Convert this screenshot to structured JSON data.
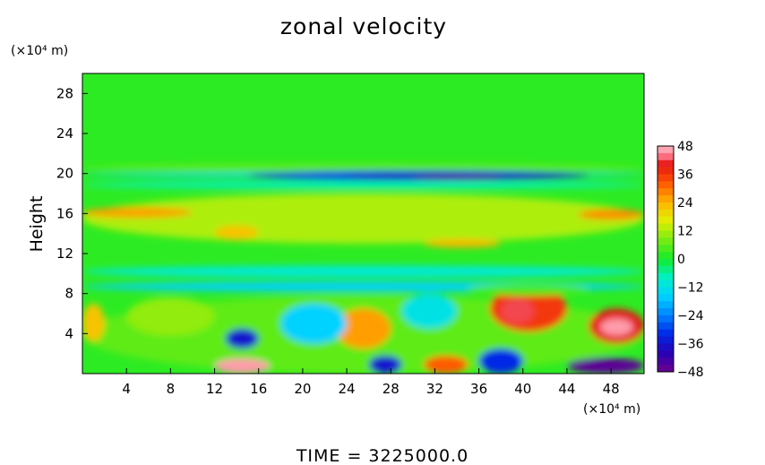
{
  "chart_data": {
    "type": "heatmap",
    "title": "zonal velocity",
    "ylabel": "Height",
    "x_unit": "(×10⁴ m)",
    "y_unit": "(×10⁴ m)",
    "xlim": [
      0,
      51
    ],
    "ylim": [
      0,
      30
    ],
    "x_ticks": [
      4,
      8,
      12,
      16,
      20,
      24,
      28,
      32,
      36,
      40,
      44,
      48
    ],
    "y_ticks": [
      4,
      8,
      12,
      16,
      20,
      24,
      28
    ],
    "colorbar": {
      "ticks": [
        48,
        36,
        24,
        12,
        0,
        -12,
        -24,
        -36,
        -48
      ],
      "range": [
        -48,
        48
      ]
    },
    "background_value": 2,
    "features": [
      {
        "x": [
          0,
          51
        ],
        "y": [
          20.2,
          21.0
        ],
        "value": 6
      },
      {
        "x": [
          0,
          51
        ],
        "y": [
          19.6,
          20.1
        ],
        "value": -14
      },
      {
        "x": [
          15,
          46
        ],
        "y": [
          19.3,
          20.3
        ],
        "value": -30
      },
      {
        "x": [
          24,
          44
        ],
        "y": [
          19.4,
          20.0
        ],
        "value": -38
      },
      {
        "x": [
          30,
          38
        ],
        "y": [
          19.5,
          19.9
        ],
        "value": -46
      },
      {
        "x": [
          0,
          51
        ],
        "y": [
          18.5,
          19.2
        ],
        "value": -8
      },
      {
        "x": [
          0,
          51
        ],
        "y": [
          13.0,
          18.0
        ],
        "value": 12
      },
      {
        "x": [
          0,
          10
        ],
        "y": [
          15.6,
          16.6
        ],
        "value": 26
      },
      {
        "x": [
          45,
          51
        ],
        "y": [
          15.4,
          16.4
        ],
        "value": 28
      },
      {
        "x": [
          12,
          16
        ],
        "y": [
          13.4,
          14.8
        ],
        "value": 22
      },
      {
        "x": [
          31,
          38
        ],
        "y": [
          12.6,
          13.4
        ],
        "value": 24
      },
      {
        "x": [
          0,
          51
        ],
        "y": [
          9.6,
          10.8
        ],
        "value": -10
      },
      {
        "x": [
          0,
          51
        ],
        "y": [
          8.2,
          9.2
        ],
        "value": -16
      },
      {
        "x": [
          0,
          51
        ],
        "y": [
          0,
          7.8
        ],
        "value": 6
      },
      {
        "x": [
          0,
          2
        ],
        "y": [
          3.2,
          7.0
        ],
        "value": 22
      },
      {
        "x": [
          4,
          12
        ],
        "y": [
          3.8,
          7.6
        ],
        "value": 10
      },
      {
        "x": [
          13,
          16
        ],
        "y": [
          2.5,
          4.5
        ],
        "value": -36
      },
      {
        "x": [
          12,
          17
        ],
        "y": [
          0,
          1.5
        ],
        "value": 46
      },
      {
        "x": [
          23,
          28
        ],
        "y": [
          2.5,
          6.5
        ],
        "value": 26
      },
      {
        "x": [
          18,
          24
        ],
        "y": [
          3.0,
          7.0
        ],
        "value": -16
      },
      {
        "x": [
          29,
          34
        ],
        "y": [
          4.5,
          8.0
        ],
        "value": -12
      },
      {
        "x": [
          31,
          35
        ],
        "y": [
          0,
          1.8
        ],
        "value": 32
      },
      {
        "x": [
          26,
          29
        ],
        "y": [
          0,
          1.8
        ],
        "value": -36
      },
      {
        "x": [
          37,
          44
        ],
        "y": [
          4.2,
          8.8
        ],
        "value": 36
      },
      {
        "x": [
          38,
          41
        ],
        "y": [
          5.0,
          7.5
        ],
        "value": 42
      },
      {
        "x": [
          36,
          40
        ],
        "y": [
          0,
          2.5
        ],
        "value": -32
      },
      {
        "x": [
          46,
          51
        ],
        "y": [
          3.0,
          6.5
        ],
        "value": 40
      },
      {
        "x": [
          47,
          50
        ],
        "y": [
          3.8,
          5.5
        ],
        "value": 46
      },
      {
        "x": [
          44,
          51
        ],
        "y": [
          0,
          1.6
        ],
        "value": -46
      },
      {
        "x": [
          35,
          46
        ],
        "y": [
          7.8,
          9.0
        ],
        "value": 4
      }
    ]
  },
  "footer": {
    "time_label": "TIME  =  3225000.0"
  }
}
